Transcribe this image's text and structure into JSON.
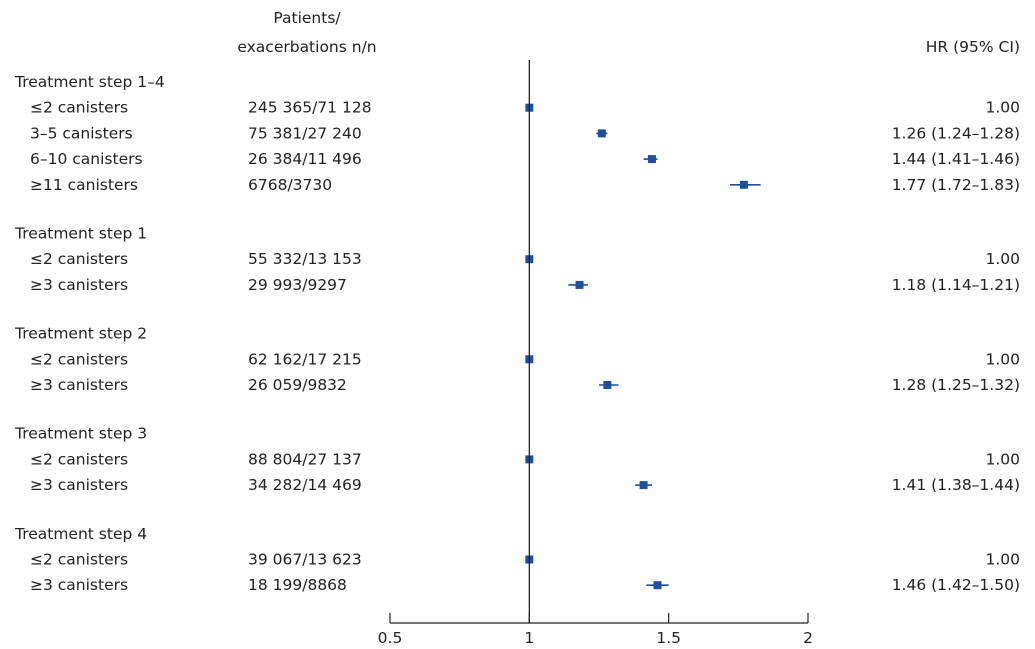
{
  "chart_data": {
    "type": "forest",
    "header_counts_line1": "Patients/",
    "header_counts_line2": "exacerbations n/n",
    "header_hr": "HR (95% CI)",
    "xlim": [
      0.5,
      2
    ],
    "x_ticks": [
      0.5,
      1,
      1.5,
      2
    ],
    "tick_labels": [
      "0.5",
      "1",
      "1.5",
      "2"
    ],
    "reference_line": 1,
    "marker_color": "#1f4e9a",
    "groups": [
      {
        "title": "Treatment step 1–4",
        "rows": [
          {
            "label": "≤2 canisters",
            "counts": "245 365/71 128",
            "hr": 1.0,
            "lo": 1.0,
            "hi": 1.0,
            "hr_text": "1.00"
          },
          {
            "label": "3–5 canisters",
            "counts": "75 381/27 240",
            "hr": 1.26,
            "lo": 1.24,
            "hi": 1.28,
            "hr_text": "1.26 (1.24–1.28)"
          },
          {
            "label": "6–10 canisters",
            "counts": "26 384/11 496",
            "hr": 1.44,
            "lo": 1.41,
            "hi": 1.46,
            "hr_text": "1.44 (1.41–1.46)"
          },
          {
            "label": "≥11 canisters",
            "counts": "6768/3730",
            "hr": 1.77,
            "lo": 1.72,
            "hi": 1.83,
            "hr_text": "1.77 (1.72–1.83)"
          }
        ]
      },
      {
        "title": "Treatment step 1",
        "rows": [
          {
            "label": "≤2 canisters",
            "counts": "55 332/13 153",
            "hr": 1.0,
            "lo": 1.0,
            "hi": 1.0,
            "hr_text": "1.00"
          },
          {
            "label": "≥3 canisters",
            "counts": "29 993/9297",
            "hr": 1.18,
            "lo": 1.14,
            "hi": 1.21,
            "hr_text": "1.18 (1.14–1.21)"
          }
        ]
      },
      {
        "title": "Treatment step 2",
        "rows": [
          {
            "label": "≤2 canisters",
            "counts": "62 162/17 215",
            "hr": 1.0,
            "lo": 1.0,
            "hi": 1.0,
            "hr_text": "1.00"
          },
          {
            "label": "≥3 canisters",
            "counts": "26 059/9832",
            "hr": 1.28,
            "lo": 1.25,
            "hi": 1.32,
            "hr_text": "1.28 (1.25–1.32)"
          }
        ]
      },
      {
        "title": "Treatment step 3",
        "rows": [
          {
            "label": "≤2 canisters",
            "counts": "88 804/27 137",
            "hr": 1.0,
            "lo": 1.0,
            "hi": 1.0,
            "hr_text": "1.00"
          },
          {
            "label": "≥3 canisters",
            "counts": "34 282/14 469",
            "hr": 1.41,
            "lo": 1.38,
            "hi": 1.44,
            "hr_text": "1.41 (1.38–1.44)"
          }
        ]
      },
      {
        "title": "Treatment step 4",
        "rows": [
          {
            "label": "≤2 canisters",
            "counts": "39 067/13 623",
            "hr": 1.0,
            "lo": 1.0,
            "hi": 1.0,
            "hr_text": "1.00"
          },
          {
            "label": "≥3 canisters",
            "counts": "18 199/8868",
            "hr": 1.46,
            "lo": 1.42,
            "hi": 1.5,
            "hr_text": "1.46 (1.42–1.50)"
          }
        ]
      }
    ]
  }
}
